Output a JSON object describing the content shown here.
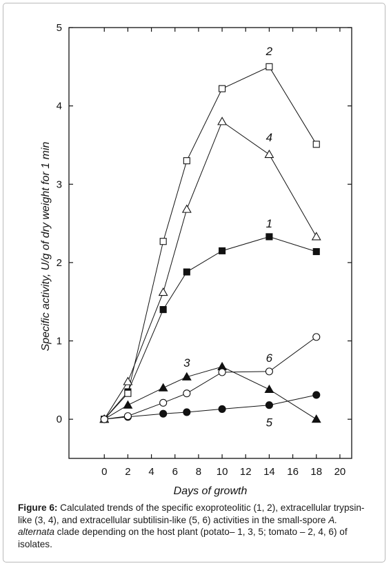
{
  "chart_data": {
    "type": "line",
    "xlabel": "Days of growth",
    "ylabel": "Specific activity, U/g of dry weight for 1 min",
    "xlim": [
      -3,
      21
    ],
    "ylim": [
      -0.5,
      5
    ],
    "x_ticks": [
      0,
      2,
      4,
      6,
      8,
      10,
      12,
      14,
      16,
      18,
      20
    ],
    "y_ticks": [
      0,
      1,
      2,
      3,
      4,
      5
    ],
    "grid": false,
    "series": [
      {
        "name": "1",
        "marker": "square-filled",
        "label_at": [
          14,
          2.45
        ],
        "x": [
          0,
          2,
          5,
          7,
          10,
          14,
          18
        ],
        "y": [
          0,
          0.35,
          1.4,
          1.88,
          2.15,
          2.33,
          2.14
        ]
      },
      {
        "name": "2",
        "marker": "square-open",
        "label_at": [
          14,
          4.65
        ],
        "x": [
          0,
          2,
          5,
          7,
          10,
          14,
          18
        ],
        "y": [
          0,
          0.33,
          2.27,
          3.3,
          4.22,
          4.5,
          3.51
        ]
      },
      {
        "name": "3",
        "marker": "triangle-filled",
        "label_at": [
          7,
          0.67
        ],
        "x": [
          0,
          2,
          5,
          7,
          10,
          14,
          18
        ],
        "y": [
          0,
          0.18,
          0.4,
          0.54,
          0.67,
          0.38,
          0.0
        ]
      },
      {
        "name": "4",
        "marker": "triangle-open",
        "label_at": [
          14,
          3.55
        ],
        "x": [
          0,
          2,
          5,
          7,
          10,
          14,
          18
        ],
        "y": [
          0,
          0.48,
          1.62,
          2.68,
          3.8,
          3.38,
          2.33
        ]
      },
      {
        "name": "5",
        "marker": "circle-filled",
        "label_at": [
          14,
          -0.09
        ],
        "x": [
          0,
          2,
          5,
          7,
          10,
          14,
          18
        ],
        "y": [
          0,
          0.03,
          0.07,
          0.09,
          0.13,
          0.18,
          0.31
        ]
      },
      {
        "name": "6",
        "marker": "circle-open",
        "label_at": [
          14,
          0.73
        ],
        "x": [
          0,
          2,
          5,
          7,
          10,
          14,
          18
        ],
        "y": [
          0,
          0.04,
          0.21,
          0.33,
          0.6,
          0.61,
          1.05
        ]
      }
    ]
  },
  "caption": {
    "label": "Figure 6:",
    "text_1": " Calculated trends of the specific exoproteolitic (1, 2), extracellular trypsin-like (3, 4), and extracellular subtilisin-like (5, 6) activities in the small-spore ",
    "organism": "A. alternata",
    "text_2": " clade depending on the host plant (potato– 1, 3, 5; tomato – 2, 4, 6) of isolates."
  }
}
